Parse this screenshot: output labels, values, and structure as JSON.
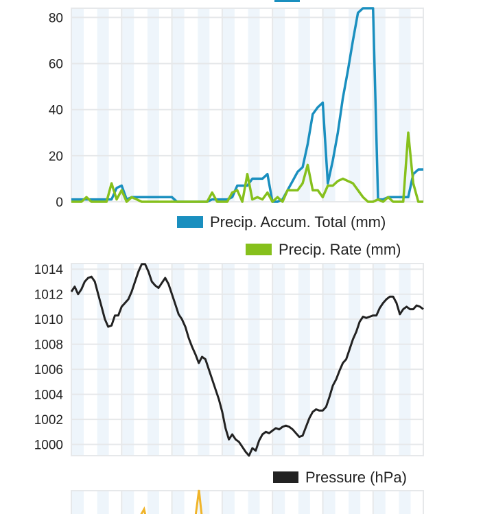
{
  "chart_data": [
    {
      "type": "line",
      "ylim": [
        0,
        84
      ],
      "yticks": [
        "0",
        "20",
        "40",
        "60",
        "80"
      ],
      "ytick_values": [
        0,
        20,
        40,
        60,
        80
      ],
      "grid": true,
      "legend_placement": "bottom-right",
      "series": [
        {
          "name": "Precip. Accum. Total (mm)",
          "color": "#1a8fbf",
          "values": [
            1,
            1,
            1,
            1,
            1,
            1,
            1,
            1,
            1,
            6,
            7,
            1,
            2,
            2,
            2,
            2,
            2,
            2,
            2,
            2,
            2,
            0,
            0,
            0,
            0,
            0,
            0,
            0,
            1,
            1,
            1,
            1,
            2,
            7,
            7,
            7,
            10,
            10,
            10,
            12,
            0,
            0,
            1,
            5,
            9,
            13,
            15,
            25,
            38,
            41,
            43,
            8,
            18,
            30,
            45,
            57,
            70,
            82,
            84,
            84,
            84,
            1,
            1,
            2,
            2,
            2,
            2,
            2,
            12,
            14,
            14
          ]
        },
        {
          "name": "Precip. Rate (mm)",
          "color": "#86c01c",
          "values": [
            0,
            0,
            0,
            2,
            0,
            0,
            0,
            0,
            8,
            1,
            5,
            0,
            2,
            1,
            0,
            0,
            0,
            0,
            0,
            0,
            0,
            0,
            0,
            0,
            0,
            0,
            0,
            0,
            4,
            0,
            0,
            0,
            4,
            5,
            0,
            12,
            1,
            2,
            1,
            4,
            0,
            2,
            0,
            5,
            5,
            5,
            8,
            16,
            5,
            5,
            2,
            7,
            7,
            9,
            10,
            9,
            8,
            5,
            2,
            0,
            0,
            1,
            0,
            2,
            0,
            0,
            0,
            30,
            8,
            0,
            0
          ]
        }
      ]
    },
    {
      "type": "line",
      "ylim": [
        999.1,
        1014.45
      ],
      "yticks": [
        "1000",
        "1002",
        "1004",
        "1006",
        "1008",
        "1010",
        "1012",
        "1014"
      ],
      "ytick_values": [
        1000,
        1002,
        1004,
        1006,
        1008,
        1010,
        1012,
        1014
      ],
      "grid": true,
      "legend_placement": "bottom-right",
      "series": [
        {
          "name": "Pressure (hPa)",
          "color": "#222222",
          "values": [
            1012.2,
            1012.6,
            1012,
            1012.4,
            1013,
            1013.3,
            1013.4,
            1013,
            1012,
            1011,
            1010,
            1009.4,
            1009.5,
            1010.3,
            1010.3,
            1011,
            1011.3,
            1011.6,
            1012.2,
            1013,
            1013.8,
            1014.4,
            1014.4,
            1013.8,
            1013,
            1012.7,
            1012.5,
            1012.9,
            1013.3,
            1012.8,
            1012,
            1011.2,
            1010.4,
            1010,
            1009.4,
            1008.5,
            1007.8,
            1007.2,
            1006.5,
            1007,
            1006.8,
            1006,
            1005.2,
            1004.4,
            1003.6,
            1002.6,
            1001.3,
            1000.4,
            1000.8,
            1000.4,
            1000.2,
            999.8,
            999.4,
            999.1,
            999.7,
            999.5,
            1000.3,
            1000.8,
            1001,
            1000.9,
            1001.1,
            1001.3,
            1001.2,
            1001.4,
            1001.5,
            1001.4,
            1001.2,
            1000.9,
            1000.6,
            1000.7,
            1001.4,
            1002.1,
            1002.6,
            1002.8,
            1002.7,
            1002.7,
            1003,
            1003.8,
            1004.7,
            1005.2,
            1005.9,
            1006.5,
            1006.8,
            1007.6,
            1008.4,
            1009,
            1009.8,
            1010.2,
            1010.1,
            1010.2,
            1010.3,
            1010.3,
            1010.9,
            1011.3,
            1011.6,
            1011.8,
            1011.8,
            1011.3,
            1010.4,
            1010.8,
            1011,
            1010.8,
            1010.8,
            1011.1,
            1011,
            1010.8
          ]
        }
      ]
    }
  ],
  "colors": {
    "stripe": "#eef5fb",
    "grid": "#e6e8ea",
    "partial_series": "#f0b429"
  }
}
